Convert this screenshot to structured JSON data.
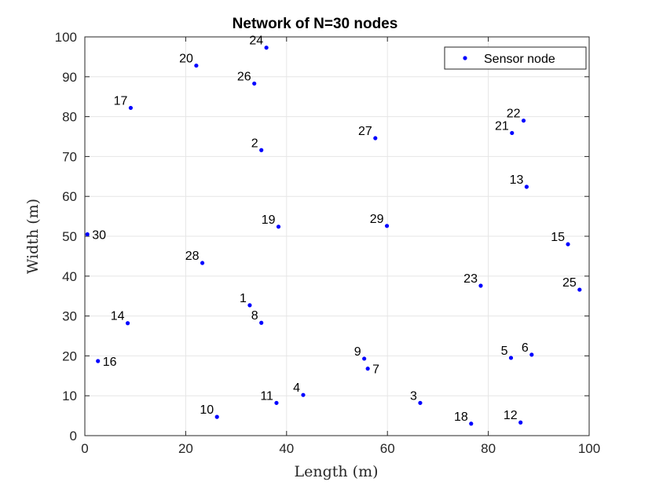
{
  "chart_data": {
    "type": "scatter",
    "title": "Network of N=30 nodes",
    "xlabel": "Length (m)",
    "ylabel": "Width (m)",
    "xlim": [
      0,
      100
    ],
    "ylim": [
      0,
      100
    ],
    "xticks": [
      0,
      20,
      40,
      60,
      80,
      100
    ],
    "yticks": [
      0,
      10,
      20,
      30,
      40,
      50,
      60,
      70,
      80,
      90,
      100
    ],
    "grid": true,
    "legend": {
      "position": "top-right",
      "entries": [
        "Sensor node"
      ]
    },
    "marker_color": "#0000ff",
    "series": [
      {
        "name": "Sensor node",
        "points": [
          {
            "id": "1",
            "x": 32.7,
            "y": 32.7
          },
          {
            "id": "2",
            "x": 35.0,
            "y": 71.6
          },
          {
            "id": "3",
            "x": 66.5,
            "y": 8.2
          },
          {
            "id": "4",
            "x": 43.3,
            "y": 10.2
          },
          {
            "id": "5",
            "x": 84.5,
            "y": 19.5
          },
          {
            "id": "6",
            "x": 88.6,
            "y": 20.3
          },
          {
            "id": "7",
            "x": 56.1,
            "y": 16.8
          },
          {
            "id": "8",
            "x": 35.0,
            "y": 28.3
          },
          {
            "id": "9",
            "x": 55.4,
            "y": 19.3
          },
          {
            "id": "10",
            "x": 26.2,
            "y": 4.7
          },
          {
            "id": "11",
            "x": 38.0,
            "y": 8.2
          },
          {
            "id": "12",
            "x": 86.4,
            "y": 3.3
          },
          {
            "id": "13",
            "x": 87.6,
            "y": 62.4
          },
          {
            "id": "14",
            "x": 8.5,
            "y": 28.2
          },
          {
            "id": "15",
            "x": 95.8,
            "y": 48.0
          },
          {
            "id": "16",
            "x": 2.6,
            "y": 18.7
          },
          {
            "id": "17",
            "x": 9.1,
            "y": 82.2
          },
          {
            "id": "18",
            "x": 76.6,
            "y": 3.0
          },
          {
            "id": "19",
            "x": 38.4,
            "y": 52.4
          },
          {
            "id": "20",
            "x": 22.1,
            "y": 92.8
          },
          {
            "id": "21",
            "x": 84.7,
            "y": 75.9
          },
          {
            "id": "22",
            "x": 87.0,
            "y": 79.0
          },
          {
            "id": "23",
            "x": 78.5,
            "y": 37.6
          },
          {
            "id": "24",
            "x": 36.0,
            "y": 97.3
          },
          {
            "id": "25",
            "x": 98.1,
            "y": 36.6
          },
          {
            "id": "26",
            "x": 33.6,
            "y": 88.3
          },
          {
            "id": "27",
            "x": 57.6,
            "y": 74.6
          },
          {
            "id": "28",
            "x": 23.3,
            "y": 43.3
          },
          {
            "id": "29",
            "x": 59.9,
            "y": 52.6
          },
          {
            "id": "30",
            "x": 0.5,
            "y": 50.5
          }
        ]
      }
    ]
  }
}
